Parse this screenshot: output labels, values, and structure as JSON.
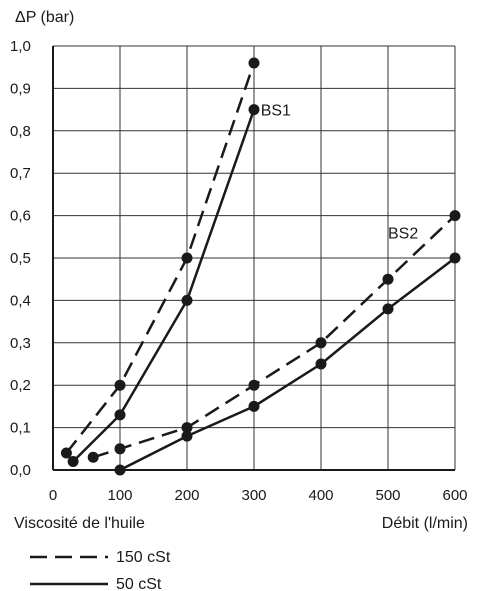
{
  "chart_data": {
    "type": "line",
    "ylabel": "ΔP (bar)",
    "xlabel": "Débit (l/min)",
    "xlim": [
      0,
      600
    ],
    "ylim": [
      0,
      1.0
    ],
    "x_ticks": [
      "0",
      "100",
      "200",
      "300",
      "400",
      "500",
      "600"
    ],
    "y_ticks": [
      "0,0",
      "0,1",
      "0,2",
      "0,3",
      "0,4",
      "0,5",
      "0,6",
      "0,7",
      "0,8",
      "0,9",
      "1,0"
    ],
    "grid": true,
    "legend_title": "Viscosité de l'huile",
    "legend": [
      {
        "label": "150 cSt",
        "style": "dashed"
      },
      {
        "label": "50 cSt",
        "style": "solid"
      }
    ],
    "series": [
      {
        "curve": "BS1",
        "viscosity": "150 cSt",
        "style": "dashed",
        "x": [
          20,
          100,
          200,
          300
        ],
        "y": [
          0.04,
          0.2,
          0.5,
          0.96
        ]
      },
      {
        "curve": "BS1",
        "viscosity": "50 cSt",
        "style": "solid",
        "x": [
          30,
          100,
          200,
          300
        ],
        "y": [
          0.02,
          0.13,
          0.4,
          0.85
        ]
      },
      {
        "curve": "BS2",
        "viscosity": "150 cSt",
        "style": "dashed",
        "x": [
          60,
          100,
          200,
          300,
          400,
          500,
          600
        ],
        "y": [
          0.03,
          0.05,
          0.1,
          0.2,
          0.3,
          0.45,
          0.6
        ]
      },
      {
        "curve": "BS2",
        "viscosity": "50 cSt",
        "style": "solid",
        "x": [
          100,
          200,
          300,
          400,
          500,
          600
        ],
        "y": [
          0.0,
          0.08,
          0.15,
          0.25,
          0.38,
          0.5
        ]
      }
    ],
    "annotations": [
      {
        "text": "BS1",
        "x": 310,
        "y": 0.85
      },
      {
        "text": "BS2",
        "x": 500,
        "y": 0.56
      }
    ]
  }
}
